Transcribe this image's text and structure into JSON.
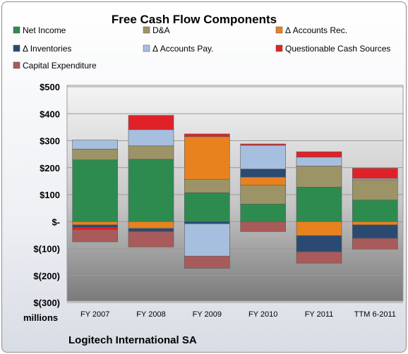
{
  "chart_data": {
    "type": "bar",
    "stacked": true,
    "title": "Free Cash Flow Components",
    "unit_label": "millions",
    "footer": "Logitech International SA",
    "legend_position": "top",
    "grid": true,
    "ylim": [
      -300,
      500
    ],
    "yticks": [
      500,
      400,
      300,
      200,
      100,
      0,
      -100,
      -200,
      -300
    ],
    "ytick_labels": [
      "$500",
      "$400",
      "$300",
      "$200",
      "$100",
      "$-",
      "$(100)",
      "$(200)",
      "$(300)"
    ],
    "categories": [
      "FY 2007",
      "FY 2008",
      "FY 2009",
      "FY 2010",
      "FY 2011",
      "TTM 6-2011"
    ],
    "series": [
      {
        "name": "Net Income",
        "color": "#2e8b4f",
        "values": [
          229,
          231,
          107,
          65,
          128,
          80
        ]
      },
      {
        "name": "D&A",
        "color": "#9c9466",
        "values": [
          40,
          50,
          50,
          70,
          78,
          75
        ]
      },
      {
        "name": "Δ Accounts Rec.",
        "color": "#e8821e",
        "values": [
          -12,
          -25,
          158,
          30,
          -52,
          -12
        ]
      },
      {
        "name": "Δ Inventories",
        "color": "#2b4a72",
        "values": [
          -10,
          -12,
          -8,
          30,
          -60,
          -50
        ]
      },
      {
        "name": "Δ Accounts Pay.",
        "color": "#a7bfdf",
        "values": [
          33,
          60,
          -120,
          88,
          33,
          5
        ]
      },
      {
        "name": "Questionable Cash Sources",
        "color": "#e02228",
        "values": [
          -8,
          53,
          10,
          5,
          20,
          38
        ]
      },
      {
        "name": "Capital Expenditure",
        "color": "#a85b5a",
        "values": [
          -45,
          -57,
          -45,
          -37,
          -42,
          -40
        ]
      }
    ]
  }
}
